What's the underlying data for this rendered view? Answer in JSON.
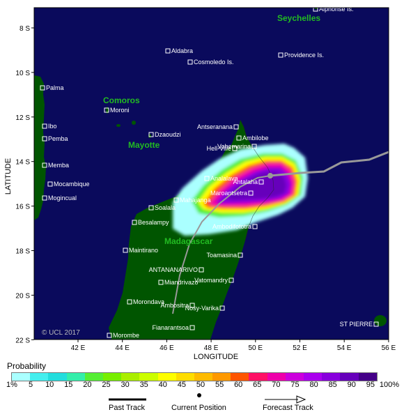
{
  "axes": {
    "x_title": "LONGITUDE",
    "y_title": "LATITUDE",
    "x_ticks": [
      "42 E",
      "44 E",
      "46 E",
      "48 E",
      "50 E",
      "52 E",
      "54 E",
      "56 E"
    ],
    "y_ticks": [
      "8 S",
      "10 S",
      "12 S",
      "14 S",
      "16 S",
      "18 S",
      "20 S",
      "22 S"
    ]
  },
  "copyright": "© UCL 2017",
  "regions": {
    "seychelles": "Seychelles",
    "comoros": "Comoros",
    "mayotte": "Mayotte",
    "madagascar": "Madagascar"
  },
  "places": [
    {
      "name": "Alphonse Is."
    },
    {
      "name": "Aldabra"
    },
    {
      "name": "Cosmoledo Is."
    },
    {
      "name": "Providence Is."
    },
    {
      "name": "Palma"
    },
    {
      "name": "Moroni"
    },
    {
      "name": "Ibo"
    },
    {
      "name": "Pemba"
    },
    {
      "name": "Dzaoudzi"
    },
    {
      "name": "Antseranana"
    },
    {
      "name": "Ambilobe"
    },
    {
      "name": "Hell-Ville"
    },
    {
      "name": "Vohemarina"
    },
    {
      "name": "Memba"
    },
    {
      "name": "Mocambique"
    },
    {
      "name": "Analalava"
    },
    {
      "name": "Antalaha"
    },
    {
      "name": "Maroantsetra"
    },
    {
      "name": "Mogincual"
    },
    {
      "name": "Mahajanga"
    },
    {
      "name": "Soalala"
    },
    {
      "name": "Besalampy"
    },
    {
      "name": "Ambodifototra"
    },
    {
      "name": "Maintirano"
    },
    {
      "name": "Toamasina"
    },
    {
      "name": "ANTANANARIVO"
    },
    {
      "name": "Vatomandry"
    },
    {
      "name": "Miandrivazo"
    },
    {
      "name": "Morondava"
    },
    {
      "name": "Ambositra"
    },
    {
      "name": "Nosy-Varika"
    },
    {
      "name": "Fianarantsoa"
    },
    {
      "name": "Morombe"
    },
    {
      "name": "ST PIERRE"
    }
  ],
  "legend": {
    "title": "Probability",
    "labels": [
      "1%",
      "5",
      "10",
      "15",
      "20",
      "25",
      "30",
      "35",
      "40",
      "45",
      "50",
      "55",
      "60",
      "65",
      "70",
      "75",
      "80",
      "85",
      "90",
      "95",
      "100%"
    ],
    "colors": [
      "#aaffff",
      "#44eeee",
      "#22dddd",
      "#33eeaa",
      "#55ee33",
      "#77ee00",
      "#aaee00",
      "#ccff00",
      "#ffff00",
      "#ffdd00",
      "#ffbb00",
      "#ff9900",
      "#ff5500",
      "#ff1166",
      "#ee00aa",
      "#cc00dd",
      "#aa00ee",
      "#8800dd",
      "#6600bb",
      "#440088"
    ]
  },
  "key": {
    "past_track": "Past Track",
    "current_position": "Current Position",
    "forecast_track": "Forecast Track"
  },
  "colors": {
    "ocean": "#0a0a5c",
    "land": "#005500",
    "track": "#999999"
  }
}
